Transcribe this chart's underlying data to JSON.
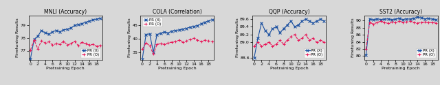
{
  "mnli": {
    "title": "MNLI (Accuracy)",
    "ylabel": "Finetuning Results",
    "xlabel": "Pretraining Epoch",
    "xlim": [
      -0.5,
      19.5
    ],
    "ylim": [
      76.3,
      79.8
    ],
    "yticks": [
      77,
      78,
      79
    ],
    "pr_x_y": [
      76.35,
      77.9,
      78.15,
      78.6,
      78.4,
      78.3,
      78.5,
      78.6,
      78.5,
      78.65,
      78.7,
      78.8,
      79.0,
      79.05,
      79.15,
      79.25,
      79.35,
      79.45,
      79.5,
      79.55
    ],
    "pr_o_y": [
      77.05,
      77.85,
      77.15,
      77.8,
      77.6,
      77.7,
      77.45,
      77.55,
      77.5,
      77.75,
      77.45,
      77.55,
      77.75,
      77.4,
      77.65,
      77.55,
      77.45,
      77.5,
      77.35,
      77.4
    ]
  },
  "cola": {
    "title": "COLA (Correlation)",
    "ylabel": "Finetuning Results",
    "xlabel": "Pretraining Epoch",
    "xlim": [
      -0.5,
      19.5
    ],
    "ylim": [
      32.5,
      48.5
    ],
    "yticks": [
      35,
      40,
      45
    ],
    "pr_x_y": [
      32.7,
      41.5,
      41.8,
      35.2,
      41.5,
      42.0,
      42.5,
      42.1,
      42.8,
      43.0,
      43.2,
      43.5,
      43.8,
      44.2,
      44.5,
      44.8,
      45.5,
      46.0,
      46.5,
      47.0
    ],
    "pr_o_y": [
      36.2,
      38.5,
      37.5,
      34.5,
      38.0,
      38.2,
      38.0,
      38.5,
      38.8,
      39.0,
      39.5,
      38.8,
      39.2,
      39.8,
      40.2,
      39.5,
      39.0,
      39.5,
      39.2,
      39.0
    ]
  },
  "qqp": {
    "title": "QQP (Accuracy)",
    "ylabel": "Finetuning Results",
    "xlabel": "Pretraining Epoch",
    "xlim": [
      -0.5,
      19.5
    ],
    "ylim": [
      88.55,
      89.7
    ],
    "yticks": [
      88.6,
      89.0,
      89.2,
      89.4,
      89.6
    ],
    "pr_x_y": [
      88.6,
      89.1,
      89.5,
      89.3,
      89.2,
      89.35,
      89.4,
      89.25,
      89.35,
      89.45,
      89.55,
      89.4,
      89.45,
      89.55,
      89.6,
      89.55,
      89.5,
      89.55,
      89.6,
      89.55
    ],
    "pr_o_y": [
      88.9,
      89.0,
      88.9,
      88.95,
      89.0,
      88.9,
      88.95,
      89.05,
      88.95,
      89.05,
      89.15,
      89.2,
      89.05,
      89.1,
      89.2,
      89.05,
      89.1,
      89.0,
      89.05,
      89.0
    ]
  },
  "sst2": {
    "title": "SST2 (Accuracy)",
    "ylabel": "Finetuning Results",
    "xlabel": "Pretraining Epoch",
    "xlim": [
      -0.5,
      19.5
    ],
    "ylim": [
      79.0,
      91.5
    ],
    "yticks": [
      80,
      82,
      84,
      86,
      88,
      90
    ],
    "pr_x_y": [
      80.2,
      90.5,
      90.2,
      90.5,
      90.3,
      90.4,
      90.5,
      90.2,
      90.4,
      90.6,
      90.3,
      90.5,
      90.4,
      90.6,
      91.0,
      90.8,
      90.5,
      90.6,
      90.4,
      90.3
    ],
    "pr_o_y": [
      82.0,
      89.5,
      89.0,
      89.5,
      89.8,
      89.5,
      89.2,
      89.6,
      89.4,
      89.8,
      89.5,
      89.6,
      89.8,
      89.5,
      89.3,
      89.5,
      89.6,
      89.4,
      89.5,
      89.3
    ]
  },
  "color_x": "#1a4fa0",
  "color_o": "#e8185a",
  "linewidth": 0.8,
  "markersize_x": 3.5,
  "markersize_o": 3.5,
  "label_x": "PR (X)",
  "label_o": "PR (O)",
  "tick_fontsize": 4.5,
  "label_fontsize": 4.5,
  "title_fontsize": 5.5,
  "legend_fontsize": 4.0,
  "fig_bg": "#d8d8d8"
}
